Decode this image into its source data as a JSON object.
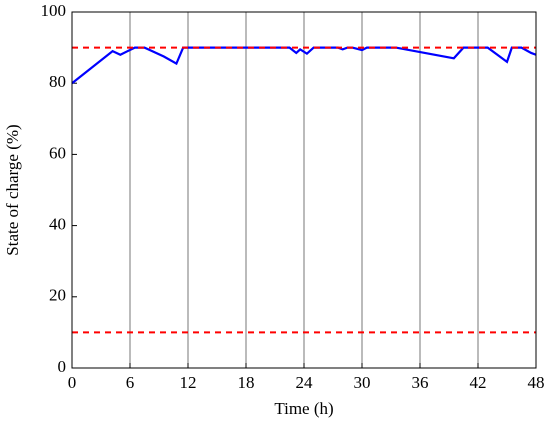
{
  "chart_data": {
    "type": "line",
    "xlabel": "Time (h)",
    "ylabel": "State of charge (%)",
    "xlim": [
      0,
      48
    ],
    "ylim": [
      0,
      100
    ],
    "xticks": [
      0,
      6,
      12,
      18,
      24,
      30,
      36,
      42,
      48
    ],
    "yticks": [
      0,
      20,
      40,
      60,
      80,
      100
    ],
    "xgrid": true,
    "series": [
      {
        "color": "#0000ff",
        "dash": false,
        "x": [
          0,
          4.2,
          5,
          6.5,
          7.5,
          9.5,
          10.8,
          11.5,
          22.5,
          23.2,
          23.6,
          24.3,
          25,
          27.5,
          28,
          28.5,
          29,
          30,
          30.5,
          33.5,
          39.5,
          40.5,
          43,
          45,
          45.5,
          46.5,
          47.5,
          48
        ],
        "values": [
          80,
          89,
          88,
          90,
          90,
          87.5,
          85.5,
          90,
          90,
          88.5,
          89.5,
          88.3,
          90,
          90,
          89.5,
          90,
          90,
          89.3,
          90,
          90,
          87,
          90,
          90,
          86,
          90,
          90,
          88.5,
          88
        ]
      },
      {
        "color": "#ff0000",
        "dash": true,
        "x": [
          0,
          48
        ],
        "values": [
          90,
          90
        ]
      },
      {
        "color": "#ff0000",
        "dash": true,
        "x": [
          0,
          48
        ],
        "values": [
          10,
          10
        ]
      }
    ]
  }
}
